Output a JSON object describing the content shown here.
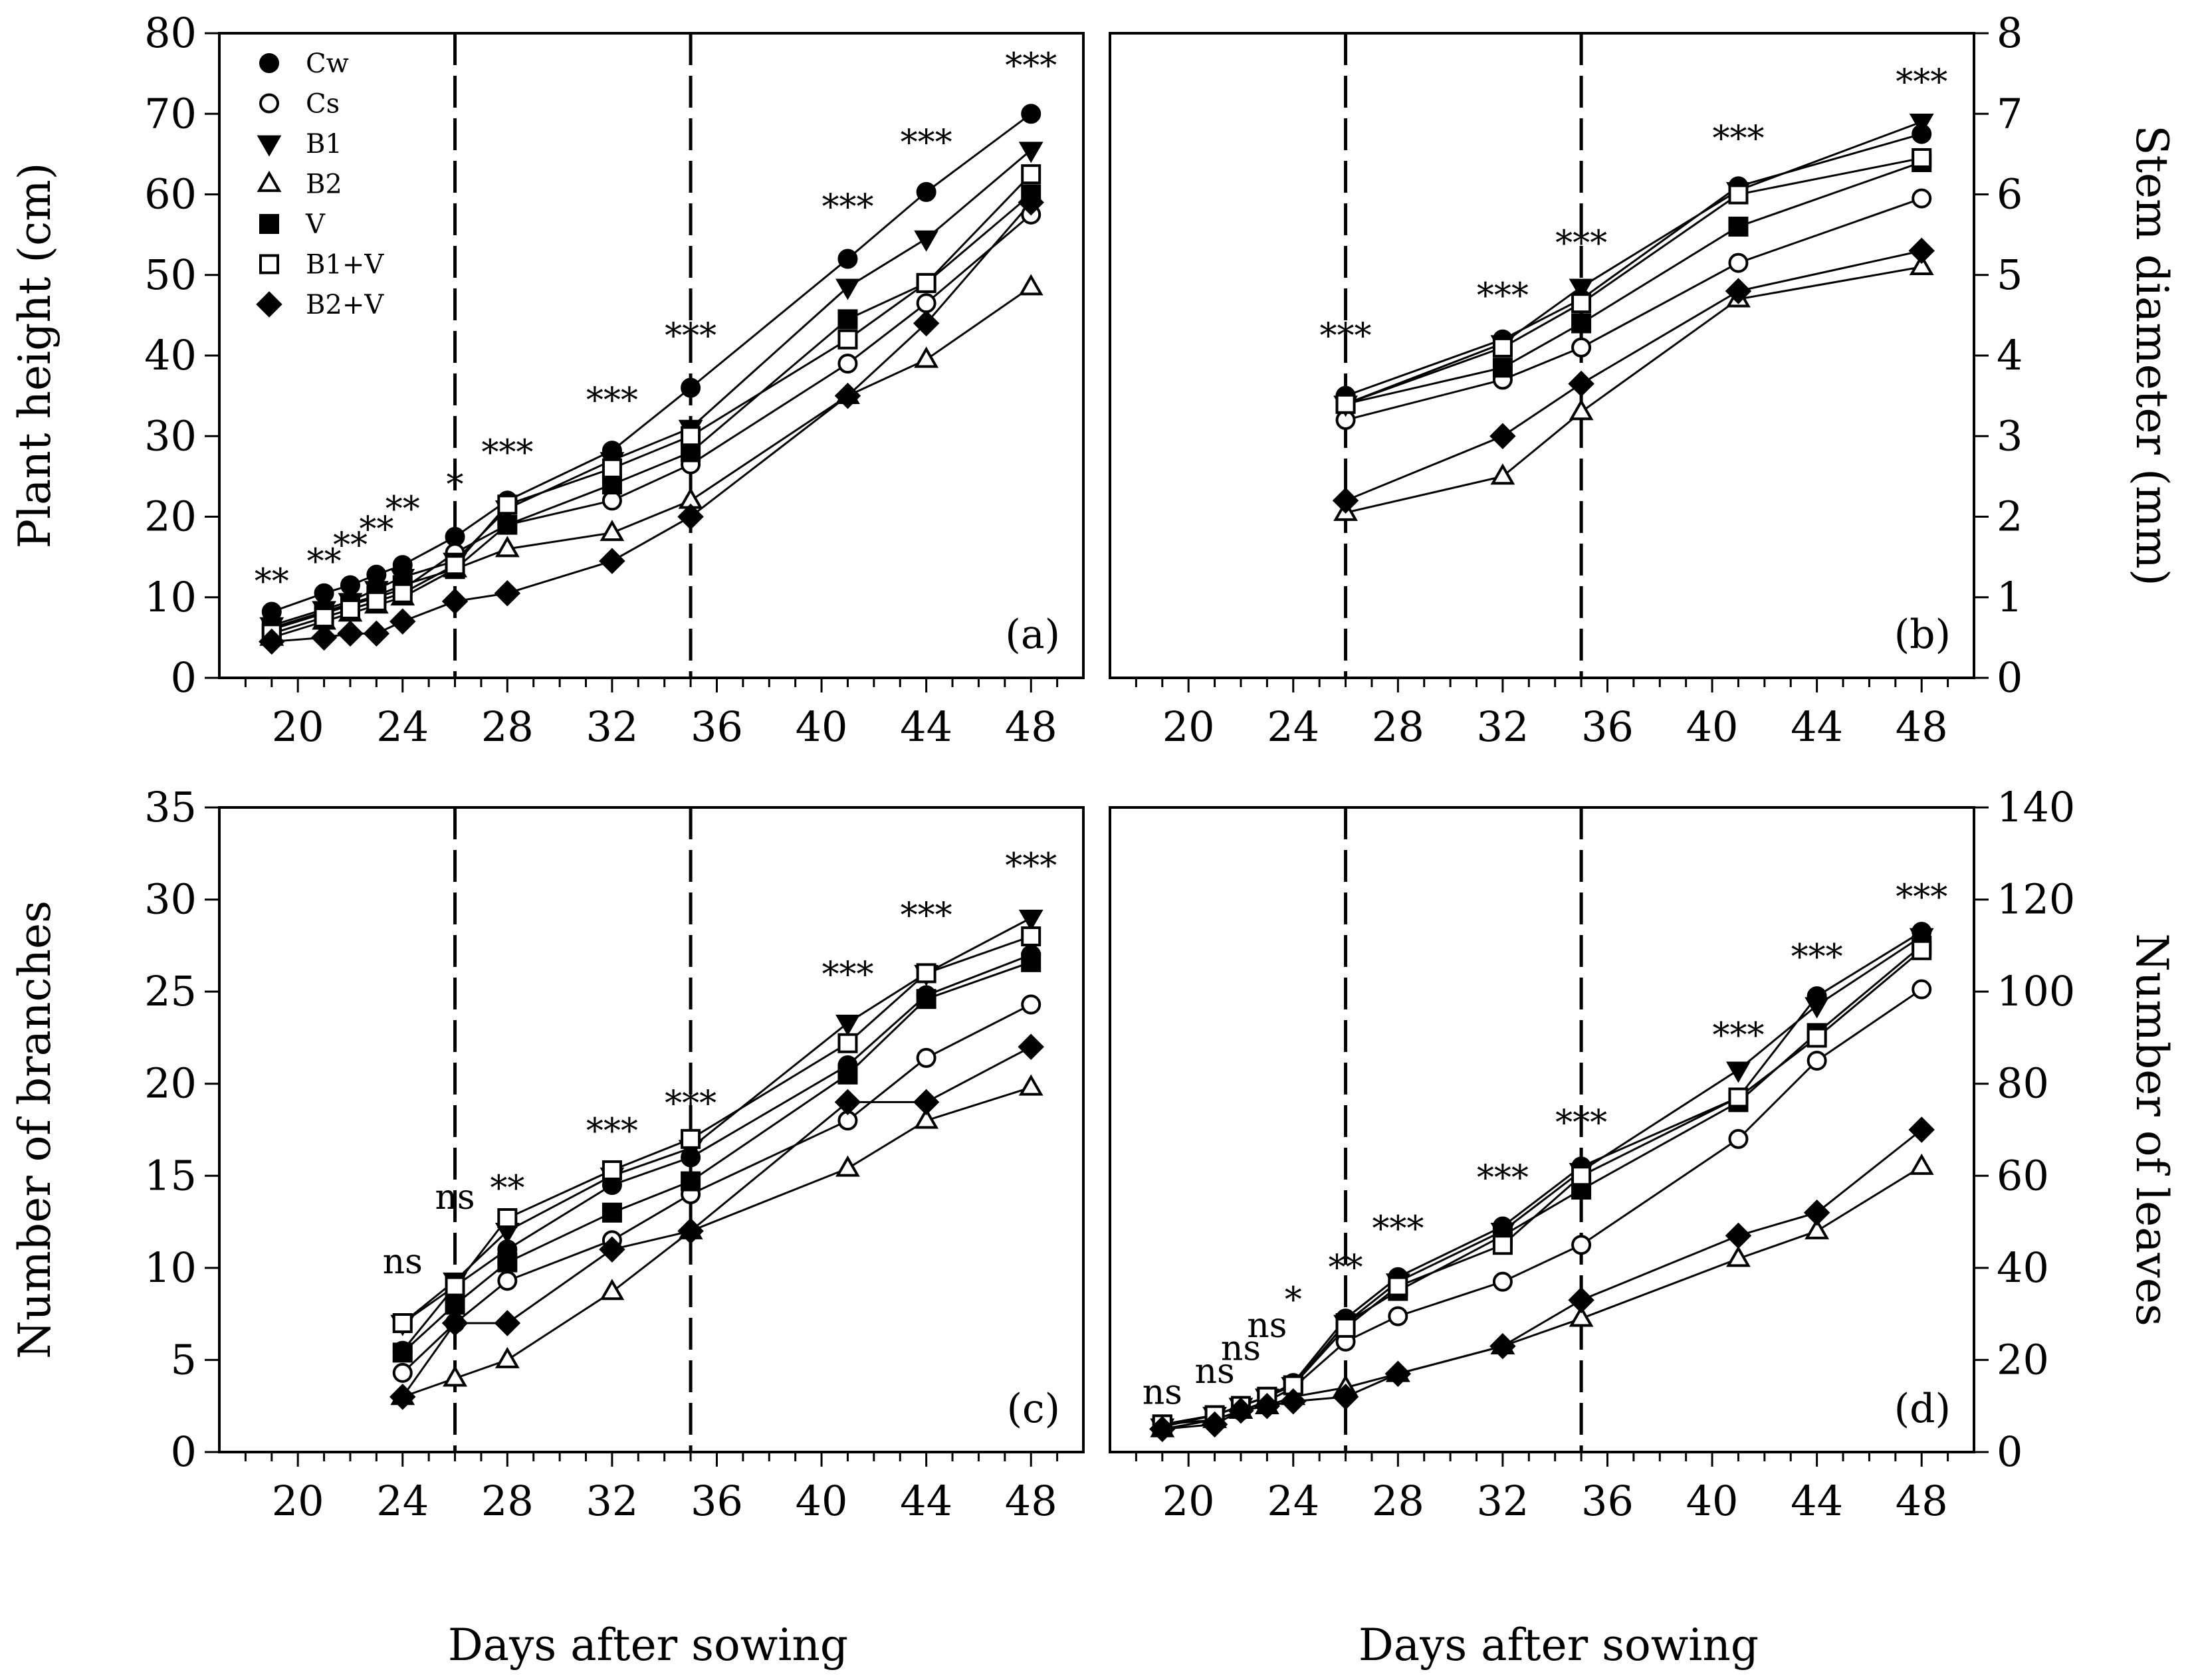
{
  "figure": {
    "x_axis_title": "Days after sowing",
    "x_ticks": [
      20,
      24,
      28,
      32,
      36,
      40,
      44,
      48
    ],
    "treatment_lines_x": [
      26,
      35
    ],
    "legend": [
      "Cw",
      "Cs",
      "B1",
      "B2",
      "V",
      "B1+V",
      "B2+V"
    ]
  },
  "chart_data": [
    {
      "id": "a",
      "type": "line",
      "panel_label": "(a)",
      "ylabel": "Plant height (cm)",
      "y_side": "left",
      "ylim": [
        0,
        80
      ],
      "yticks": [
        0,
        10,
        20,
        30,
        40,
        50,
        60,
        70,
        80
      ],
      "xlim": [
        17,
        50
      ],
      "series": [
        {
          "name": "Cw",
          "x": [
            19,
            21,
            22,
            23,
            24,
            26,
            28,
            32,
            35,
            41,
            44,
            48
          ],
          "y": [
            8.2,
            10.5,
            11.5,
            12.8,
            14,
            17.5,
            22,
            28.2,
            36,
            52,
            60.3,
            70
          ]
        },
        {
          "name": "Cs",
          "x": [
            19,
            21,
            22,
            23,
            24,
            26,
            28,
            32,
            35,
            41,
            44,
            48
          ],
          "y": [
            6,
            8,
            9,
            10,
            11,
            15.5,
            19,
            22,
            26.5,
            39,
            46.5,
            57.5
          ]
        },
        {
          "name": "B1",
          "x": [
            19,
            21,
            22,
            23,
            24,
            26,
            28,
            32,
            35,
            41,
            44,
            48
          ],
          "y": [
            6.5,
            8.5,
            9.5,
            11,
            12.5,
            14.5,
            21,
            27,
            31,
            48.5,
            54.5,
            65.5
          ]
        },
        {
          "name": "B2",
          "x": [
            19,
            21,
            22,
            23,
            24,
            26,
            28,
            32,
            35,
            41,
            44,
            48
          ],
          "y": [
            5,
            7,
            8,
            9,
            10,
            13.5,
            16,
            18,
            22,
            35,
            39.5,
            48.5
          ]
        },
        {
          "name": "V",
          "x": [
            19,
            21,
            22,
            23,
            24,
            26,
            28,
            32,
            35,
            41,
            44,
            48
          ],
          "y": [
            6.2,
            8.2,
            9.2,
            10.2,
            11.5,
            13.5,
            19,
            24,
            28,
            44.5,
            49,
            60
          ]
        },
        {
          "name": "B1+V",
          "x": [
            19,
            21,
            22,
            23,
            24,
            26,
            28,
            32,
            35,
            41,
            44,
            48
          ],
          "y": [
            5.5,
            7.5,
            8.5,
            9.5,
            10.5,
            14,
            21.5,
            26,
            30,
            42,
            49,
            62.5
          ]
        },
        {
          "name": "B2+V",
          "x": [
            19,
            21,
            22,
            23,
            24,
            26,
            28,
            32,
            35,
            41,
            44,
            48
          ],
          "y": [
            4.5,
            5,
            5.5,
            5.5,
            7,
            9.5,
            10.5,
            14.5,
            20,
            35,
            44,
            59
          ]
        }
      ],
      "significance": [
        {
          "x": 19,
          "y": 10.5,
          "label": "**"
        },
        {
          "x": 21,
          "y": 13,
          "label": "**"
        },
        {
          "x": 22,
          "y": 15,
          "label": "**"
        },
        {
          "x": 23,
          "y": 17,
          "label": "**"
        },
        {
          "x": 24,
          "y": 19.5,
          "label": "**"
        },
        {
          "x": 26,
          "y": 22.5,
          "label": "*"
        },
        {
          "x": 28,
          "y": 26.5,
          "label": "***"
        },
        {
          "x": 32,
          "y": 33,
          "label": "***"
        },
        {
          "x": 35,
          "y": 41,
          "label": "***"
        },
        {
          "x": 41,
          "y": 57,
          "label": "***"
        },
        {
          "x": 44,
          "y": 65,
          "label": "***"
        },
        {
          "x": 48,
          "y": 74.5,
          "label": "***"
        }
      ]
    },
    {
      "id": "b",
      "type": "line",
      "panel_label": "(b)",
      "ylabel": "Stem diameter (mm)",
      "y_side": "right",
      "ylim": [
        0,
        8
      ],
      "yticks": [
        0,
        1,
        2,
        3,
        4,
        5,
        6,
        7,
        8
      ],
      "xlim": [
        17,
        50
      ],
      "series": [
        {
          "name": "Cw",
          "x": [
            26,
            32,
            35,
            41,
            48
          ],
          "y": [
            3.5,
            4.2,
            4.7,
            6.1,
            6.75
          ]
        },
        {
          "name": "Cs",
          "x": [
            26,
            32,
            35,
            41,
            48
          ],
          "y": [
            3.2,
            3.7,
            4.1,
            5.15,
            5.95
          ]
        },
        {
          "name": "B1",
          "x": [
            26,
            32,
            35,
            41,
            48
          ],
          "y": [
            3.4,
            4.15,
            4.85,
            6.05,
            6.9
          ]
        },
        {
          "name": "B2",
          "x": [
            26,
            32,
            35,
            41,
            48
          ],
          "y": [
            2.05,
            2.5,
            3.3,
            4.7,
            5.1
          ]
        },
        {
          "name": "V",
          "x": [
            26,
            32,
            35,
            41,
            48
          ],
          "y": [
            3.4,
            3.85,
            4.4,
            5.6,
            6.4
          ]
        },
        {
          "name": "B1+V",
          "x": [
            26,
            32,
            35,
            41,
            48
          ],
          "y": [
            3.4,
            4.1,
            4.65,
            6.0,
            6.45
          ]
        },
        {
          "name": "B2+V",
          "x": [
            26,
            32,
            35,
            41,
            48
          ],
          "y": [
            2.2,
            3.0,
            3.65,
            4.8,
            5.3
          ]
        }
      ],
      "significance": [
        {
          "x": 26,
          "y": 4.1,
          "label": "***"
        },
        {
          "x": 32,
          "y": 4.6,
          "label": "***"
        },
        {
          "x": 35,
          "y": 5.25,
          "label": "***"
        },
        {
          "x": 41,
          "y": 6.55,
          "label": "***"
        },
        {
          "x": 48,
          "y": 7.25,
          "label": "***"
        }
      ]
    },
    {
      "id": "c",
      "type": "line",
      "panel_label": "(c)",
      "ylabel": "Number of branches",
      "y_side": "left",
      "ylim": [
        0,
        35
      ],
      "yticks": [
        0,
        5,
        10,
        15,
        20,
        25,
        30,
        35
      ],
      "xlim": [
        17,
        50
      ],
      "series": [
        {
          "name": "Cw",
          "x": [
            24,
            26,
            28,
            32,
            35,
            41,
            44,
            48
          ],
          "y": [
            5.5,
            9,
            11,
            14.5,
            16,
            21,
            24.8,
            27
          ]
        },
        {
          "name": "Cs",
          "x": [
            24,
            26,
            28,
            32,
            35,
            41,
            44,
            48
          ],
          "y": [
            4.3,
            7,
            9.3,
            11.5,
            14,
            18,
            21.4,
            24.3
          ]
        },
        {
          "name": "B1",
          "x": [
            24,
            26,
            28,
            32,
            35,
            41,
            44,
            48
          ],
          "y": [
            7,
            9.3,
            12,
            15,
            16.5,
            23.3,
            26,
            29
          ]
        },
        {
          "name": "B2",
          "x": [
            24,
            26,
            28,
            32,
            35,
            41,
            44,
            48
          ],
          "y": [
            3,
            4,
            5,
            8.7,
            12,
            15.4,
            18,
            19.8
          ]
        },
        {
          "name": "V",
          "x": [
            24,
            26,
            28,
            32,
            35,
            41,
            44,
            48
          ],
          "y": [
            5.4,
            8,
            10.3,
            13,
            14.7,
            20.5,
            24.6,
            26.6
          ]
        },
        {
          "name": "B1+V",
          "x": [
            24,
            26,
            28,
            32,
            35,
            41,
            44,
            48
          ],
          "y": [
            7,
            9,
            12.7,
            15.3,
            17,
            22.2,
            26,
            28
          ]
        },
        {
          "name": "B2+V",
          "x": [
            24,
            26,
            28,
            32,
            35,
            41,
            44,
            48
          ],
          "y": [
            3,
            7,
            7,
            11,
            12,
            19,
            19,
            22
          ]
        }
      ],
      "significance": [
        {
          "x": 24,
          "y": 9.7,
          "label": "ns"
        },
        {
          "x": 26,
          "y": 13.2,
          "label": "ns"
        },
        {
          "x": 28,
          "y": 13.7,
          "label": "**"
        },
        {
          "x": 32,
          "y": 16.8,
          "label": "***"
        },
        {
          "x": 35,
          "y": 18.3,
          "label": "***"
        },
        {
          "x": 41,
          "y": 25.3,
          "label": "***"
        },
        {
          "x": 44,
          "y": 28.5,
          "label": "***"
        },
        {
          "x": 48,
          "y": 31.2,
          "label": "***"
        }
      ]
    },
    {
      "id": "d",
      "type": "line",
      "panel_label": "(d)",
      "ylabel": "Number of leaves",
      "y_side": "right",
      "ylim": [
        0,
        140
      ],
      "yticks": [
        0,
        20,
        40,
        60,
        80,
        100,
        120,
        140
      ],
      "xlim": [
        17,
        50
      ],
      "series": [
        {
          "name": "Cw",
          "x": [
            19,
            21,
            22,
            23,
            24,
            26,
            28,
            32,
            35,
            41,
            44,
            48
          ],
          "y": [
            6,
            8,
            10,
            12,
            15,
            29,
            38,
            49,
            62,
            77,
            99,
            113
          ]
        },
        {
          "name": "Cs",
          "x": [
            19,
            21,
            22,
            23,
            24,
            26,
            28,
            32,
            35,
            41,
            44,
            48
          ],
          "y": [
            6,
            7,
            9,
            11,
            14,
            24,
            29.5,
            37,
            45,
            68,
            85,
            100.5
          ]
        },
        {
          "name": "B1",
          "x": [
            19,
            21,
            22,
            23,
            24,
            26,
            28,
            32,
            35,
            41,
            44,
            48
          ],
          "y": [
            5.5,
            8,
            10,
            12,
            14.5,
            28,
            37,
            48,
            61,
            83,
            97,
            112
          ]
        },
        {
          "name": "B2",
          "x": [
            19,
            21,
            22,
            23,
            24,
            26,
            28,
            32,
            35,
            41,
            44,
            48
          ],
          "y": [
            5,
            7,
            9,
            10,
            12,
            14,
            17,
            23,
            29,
            42,
            48,
            62
          ]
        },
        {
          "name": "V",
          "x": [
            19,
            21,
            22,
            23,
            24,
            26,
            28,
            32,
            35,
            41,
            44,
            48
          ],
          "y": [
            6,
            8,
            10,
            12,
            14.5,
            28,
            35,
            47,
            57,
            76,
            91,
            110
          ]
        },
        {
          "name": "B1+V",
          "x": [
            19,
            21,
            22,
            23,
            24,
            26,
            28,
            32,
            35,
            41,
            44,
            48
          ],
          "y": [
            6,
            8,
            10,
            12,
            14.5,
            27,
            36,
            45,
            60,
            77,
            90,
            109
          ]
        },
        {
          "name": "B2+V",
          "x": [
            19,
            21,
            22,
            23,
            24,
            26,
            28,
            32,
            35,
            41,
            44,
            48
          ],
          "y": [
            5,
            6,
            9,
            10,
            11,
            12,
            17,
            23,
            33,
            47,
            52,
            70
          ]
        }
      ],
      "significance": [
        {
          "x": 19,
          "y": 10.5,
          "label": "ns"
        },
        {
          "x": 21,
          "y": 15,
          "label": "ns"
        },
        {
          "x": 22,
          "y": 20,
          "label": "ns"
        },
        {
          "x": 23,
          "y": 25,
          "label": "ns"
        },
        {
          "x": 24,
          "y": 30.5,
          "label": "*"
        },
        {
          "x": 26,
          "y": 37.5,
          "label": "**"
        },
        {
          "x": 28,
          "y": 46,
          "label": "***"
        },
        {
          "x": 32,
          "y": 57,
          "label": "***"
        },
        {
          "x": 35,
          "y": 69,
          "label": "***"
        },
        {
          "x": 41,
          "y": 88,
          "label": "***"
        },
        {
          "x": 44,
          "y": 105,
          "label": "***"
        },
        {
          "x": 48,
          "y": 118,
          "label": "***"
        }
      ]
    }
  ]
}
